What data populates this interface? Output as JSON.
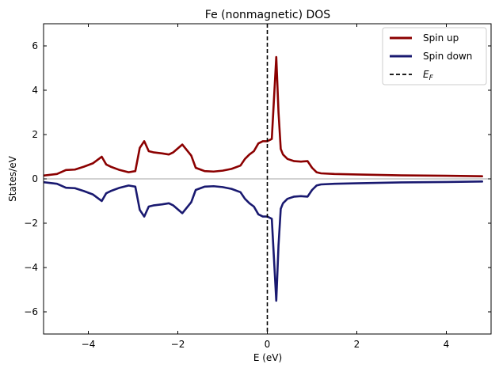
{
  "chart_data": {
    "type": "line",
    "title": "Fe (nonmagnetic) DOS",
    "xlabel": "E (eV)",
    "ylabel": "States/eV",
    "xlim": [
      -5,
      5
    ],
    "ylim": [
      -7,
      7
    ],
    "xticks": [
      -4,
      -2,
      0,
      2,
      4
    ],
    "yticks": [
      -6,
      -4,
      -2,
      0,
      2,
      4,
      6
    ],
    "xtick_labels": [
      "−4",
      "−2",
      "0",
      "2",
      "4"
    ],
    "ytick_labels": [
      "−6",
      "−4",
      "−2",
      "0",
      "2",
      "4",
      "6"
    ],
    "grid": false,
    "legend": "top-right",
    "zero_line_color": "#888888",
    "fermi": {
      "x": 0,
      "color": "#000000",
      "label": "E",
      "label_sub": "F"
    },
    "series": [
      {
        "name": "Spin up",
        "color": "#8b0000",
        "x": [
          -5.0,
          -4.7,
          -4.5,
          -4.3,
          -4.1,
          -3.9,
          -3.7,
          -3.6,
          -3.5,
          -3.3,
          -3.1,
          -2.95,
          -2.85,
          -2.75,
          -2.65,
          -2.55,
          -2.35,
          -2.2,
          -2.1,
          -1.9,
          -1.7,
          -1.6,
          -1.4,
          -1.2,
          -1.0,
          -0.8,
          -0.6,
          -0.5,
          -0.4,
          -0.3,
          -0.2,
          -0.1,
          0.0,
          0.05,
          0.1,
          0.2,
          0.25,
          0.3,
          0.35,
          0.45,
          0.6,
          0.75,
          0.9,
          1.0,
          1.1,
          1.2,
          1.5,
          2.0,
          3.0,
          4.0,
          4.8
        ],
        "values": [
          0.15,
          0.22,
          0.4,
          0.42,
          0.55,
          0.7,
          1.0,
          0.65,
          0.55,
          0.4,
          0.3,
          0.35,
          1.4,
          1.7,
          1.25,
          1.2,
          1.15,
          1.1,
          1.2,
          1.55,
          1.05,
          0.5,
          0.35,
          0.33,
          0.37,
          0.45,
          0.6,
          0.9,
          1.1,
          1.25,
          1.6,
          1.7,
          1.7,
          1.75,
          1.8,
          5.5,
          3.0,
          1.35,
          1.1,
          0.9,
          0.8,
          0.78,
          0.8,
          0.5,
          0.3,
          0.25,
          0.22,
          0.2,
          0.16,
          0.14,
          0.12
        ]
      },
      {
        "name": "Spin down",
        "color": "#191970",
        "x": [
          -5.0,
          -4.7,
          -4.5,
          -4.3,
          -4.1,
          -3.9,
          -3.7,
          -3.6,
          -3.5,
          -3.3,
          -3.1,
          -2.95,
          -2.85,
          -2.75,
          -2.65,
          -2.55,
          -2.35,
          -2.2,
          -2.1,
          -1.9,
          -1.7,
          -1.6,
          -1.4,
          -1.2,
          -1.0,
          -0.8,
          -0.6,
          -0.5,
          -0.4,
          -0.3,
          -0.2,
          -0.1,
          0.0,
          0.05,
          0.1,
          0.2,
          0.25,
          0.3,
          0.35,
          0.45,
          0.6,
          0.75,
          0.9,
          1.0,
          1.1,
          1.2,
          1.5,
          2.0,
          3.0,
          4.0,
          4.8
        ],
        "values": [
          -0.15,
          -0.22,
          -0.4,
          -0.42,
          -0.55,
          -0.7,
          -1.0,
          -0.65,
          -0.55,
          -0.4,
          -0.3,
          -0.35,
          -1.4,
          -1.7,
          -1.25,
          -1.2,
          -1.15,
          -1.1,
          -1.2,
          -1.55,
          -1.05,
          -0.5,
          -0.35,
          -0.33,
          -0.37,
          -0.45,
          -0.6,
          -0.9,
          -1.1,
          -1.25,
          -1.6,
          -1.7,
          -1.7,
          -1.75,
          -1.8,
          -5.5,
          -3.0,
          -1.35,
          -1.1,
          -0.9,
          -0.8,
          -0.78,
          -0.8,
          -0.5,
          -0.3,
          -0.25,
          -0.22,
          -0.2,
          -0.16,
          -0.14,
          -0.12
        ]
      }
    ]
  }
}
